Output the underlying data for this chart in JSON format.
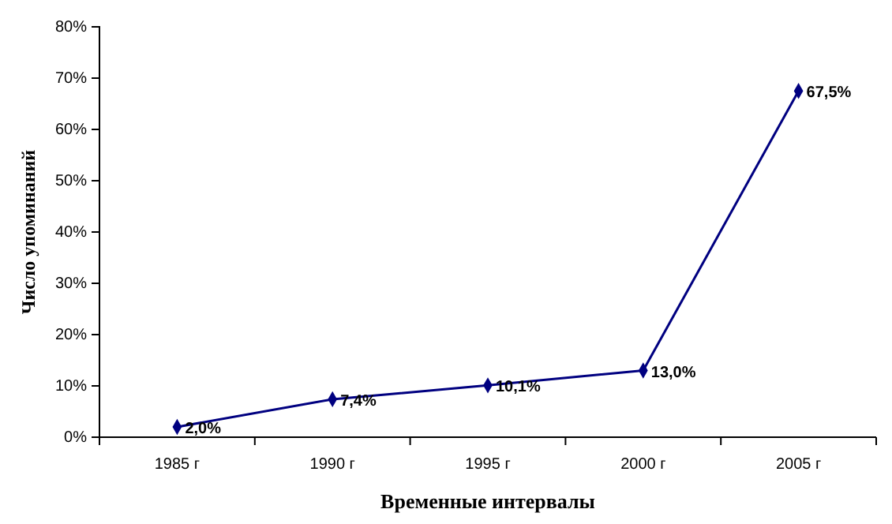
{
  "chart_data": {
    "type": "line",
    "xlabel": "Временные интервалы",
    "ylabel": "Число упоминаний",
    "categories": [
      "1985 г",
      "1990 г",
      "1995 г",
      "2000 г",
      "2005 г"
    ],
    "series": [
      {
        "color": "#000080",
        "values": [
          2.0,
          7.4,
          10.1,
          13.0,
          67.5
        ],
        "value_labels": [
          "2,0%",
          "7,4%",
          "10,1%",
          "13,0%",
          "67,5%"
        ]
      }
    ],
    "ylim": [
      0,
      80
    ],
    "yticks": [
      {
        "value": 0,
        "label": "0%"
      },
      {
        "value": 10,
        "label": "10%"
      },
      {
        "value": 20,
        "label": "20%"
      },
      {
        "value": 30,
        "label": "30%"
      },
      {
        "value": 40,
        "label": "40%"
      },
      {
        "value": 50,
        "label": "50%"
      },
      {
        "value": 60,
        "label": "60%"
      },
      {
        "value": 70,
        "label": "70%"
      },
      {
        "value": 80,
        "label": "80%"
      }
    ],
    "grid": false,
    "marker": "diamond",
    "line_style": "solid"
  }
}
